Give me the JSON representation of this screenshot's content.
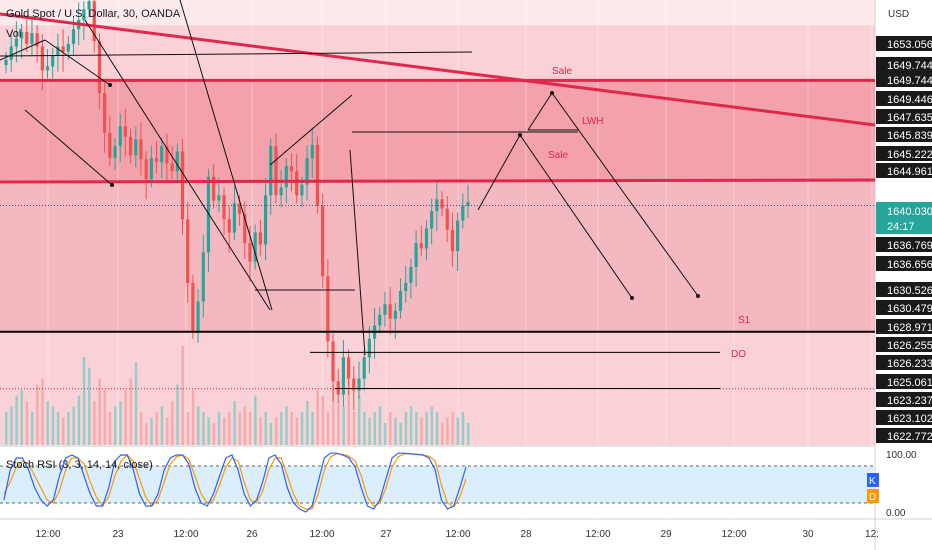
{
  "header": {
    "symbol_title": "Gold Spot / U.S. Dollar, 30, OANDA",
    "volume_label": "Vol",
    "currency": "USD"
  },
  "colors": {
    "zone_light": "#fad1d6",
    "zone_mid": "#f6b8c0",
    "zone_dark": "#f3a2ac",
    "accent_line": "#e0284a",
    "candle_up": "#26a69a",
    "candle_down": "#ef5350",
    "price_tag": "#26a69a",
    "stoch_k": "#2962ff",
    "stoch_d": "#ff9800",
    "rsi_band": "#dbeefd"
  },
  "stoch_panel": {
    "label": "Stoch RSI (3, 3, 14, 14, close)",
    "k_badge": "K",
    "d_badge": "D",
    "level_top": "100.00",
    "level_bottom": "0.00"
  },
  "annotations": {
    "sale_upper": "Sale",
    "sale_lower": "Sale",
    "lwh": "LWH",
    "s1": "S1",
    "do": "DO"
  },
  "chart_data": {
    "type": "candlestick",
    "symbol": "XAUUSD",
    "timeframe": "30",
    "price_axis_labels": [
      "1653.056",
      "1649.744",
      "1649.744",
      "1649.446",
      "1647.635",
      "1645.839",
      "1645.222",
      "1644.961",
      "1640.030",
      "1636.769",
      "1636.656",
      "1630.526",
      "1630.479",
      "1628.971",
      "1626.255",
      "1626.233",
      "1625.061",
      "1623.237",
      "1623.102",
      "1622.772"
    ],
    "current_price": "1640.030",
    "countdown": "24:17",
    "time_axis_labels": [
      "12:00",
      "23",
      "12:00",
      "26",
      "12:00",
      "27",
      "12:00",
      "28",
      "12:00",
      "29",
      "12:00",
      "30",
      "12:"
    ],
    "ylim": [
      1622.0,
      1655.5
    ],
    "closes": [
      1651.0,
      1652.0,
      1652.6,
      1653.1,
      1652.2,
      1653.0,
      1652.0,
      1650.2,
      1650.5,
      1651.3,
      1652.0,
      1651.6,
      1652.2,
      1653.3,
      1654.0,
      1654.8,
      1655.4,
      1652.4,
      1648.5,
      1645.5,
      1643.6,
      1644.5,
      1646.0,
      1645.2,
      1643.8,
      1645.0,
      1643.5,
      1642.0,
      1643.6,
      1643.3,
      1644.5,
      1643.2,
      1642.6,
      1644.1,
      1639.0,
      1634.2,
      1630.6,
      1632.8,
      1636.5,
      1642.2,
      1640.4,
      1640.8,
      1639.0,
      1638.0,
      1640.2,
      1639.4,
      1637.2,
      1635.8,
      1638.0,
      1637.1,
      1640.8,
      1644.5,
      1640.8,
      1641.4,
      1643.0,
      1642.6,
      1640.8,
      1641.6,
      1643.6,
      1644.6,
      1640.0,
      1634.7,
      1629.8,
      1626.8,
      1625.8,
      1628.6,
      1627.0,
      1626.1,
      1627.0,
      1628.6,
      1630.0,
      1631.0,
      1631.8,
      1632.6,
      1631.5,
      1632.1,
      1633.6,
      1634.2,
      1635.4,
      1637.2,
      1636.8,
      1638.3,
      1639.6,
      1640.5,
      1639.8,
      1638.2,
      1636.6,
      1638.9,
      1640.0,
      1640.3
    ],
    "volumes": [
      0.3,
      0.35,
      0.45,
      0.5,
      0.4,
      0.3,
      0.55,
      0.6,
      0.4,
      0.35,
      0.3,
      0.25,
      0.3,
      0.35,
      0.45,
      0.8,
      0.7,
      0.4,
      0.6,
      0.5,
      0.3,
      0.35,
      0.4,
      0.5,
      0.6,
      0.75,
      0.3,
      0.2,
      0.25,
      0.3,
      0.35,
      0.25,
      0.4,
      0.55,
      0.9,
      0.3,
      0.5,
      0.35,
      0.3,
      0.25,
      0.2,
      0.3,
      0.25,
      0.3,
      0.4,
      0.3,
      0.35,
      0.3,
      0.45,
      0.25,
      0.3,
      0.2,
      0.25,
      0.3,
      0.35,
      0.3,
      0.25,
      0.3,
      0.4,
      0.3,
      0.5,
      0.45,
      0.3,
      0.55,
      0.4,
      0.35,
      0.6,
      0.3,
      0.45,
      0.3,
      0.25,
      0.3,
      0.35,
      0.2,
      0.3,
      0.25,
      0.2,
      0.3,
      0.35,
      0.3,
      0.25,
      0.3,
      0.35,
      0.3,
      0.2,
      0.25,
      0.3,
      0.25,
      0.3,
      0.2
    ],
    "stoch_k": [
      0.2,
      0.7,
      0.9,
      0.9,
      0.7,
      0.4,
      0.2,
      0.1,
      0.2,
      0.6,
      0.9,
      0.95,
      0.9,
      0.6,
      0.3,
      0.1,
      0.1,
      0.4,
      0.85,
      0.95,
      0.95,
      0.7,
      0.3,
      0.1,
      0.1,
      0.3,
      0.7,
      0.9,
      0.95,
      0.95,
      0.8,
      0.4,
      0.15,
      0.1,
      0.3,
      0.6,
      0.9,
      0.95,
      0.7,
      0.3,
      0.1,
      0.2,
      0.5,
      0.9,
      0.95,
      0.8,
      0.4,
      0.15,
      0.05,
      0.0,
      0.1,
      0.5,
      0.9,
      0.98,
      0.98,
      0.95,
      0.9,
      0.75,
      0.4,
      0.1,
      0.05,
      0.2,
      0.55,
      0.9,
      0.98,
      0.98,
      0.97,
      0.96,
      0.95,
      0.9,
      0.7,
      0.2,
      0.05,
      0.1,
      0.4,
      0.75
    ],
    "stoch_d": [
      0.3,
      0.5,
      0.75,
      0.85,
      0.8,
      0.6,
      0.4,
      0.2,
      0.15,
      0.35,
      0.7,
      0.9,
      0.9,
      0.8,
      0.5,
      0.25,
      0.1,
      0.25,
      0.6,
      0.85,
      0.95,
      0.85,
      0.55,
      0.25,
      0.1,
      0.2,
      0.5,
      0.8,
      0.92,
      0.95,
      0.88,
      0.6,
      0.3,
      0.15,
      0.2,
      0.45,
      0.75,
      0.9,
      0.85,
      0.5,
      0.2,
      0.15,
      0.35,
      0.7,
      0.9,
      0.9,
      0.6,
      0.3,
      0.1,
      0.05,
      0.05,
      0.3,
      0.7,
      0.92,
      0.97,
      0.96,
      0.93,
      0.85,
      0.6,
      0.25,
      0.1,
      0.15,
      0.4,
      0.75,
      0.92,
      0.97,
      0.97,
      0.96,
      0.95,
      0.93,
      0.85,
      0.45,
      0.15,
      0.08,
      0.25,
      0.55
    ],
    "levels": {
      "upper_sale_line": 1649.446,
      "mid_line": 1641.8,
      "support_line": 1630.526,
      "dotted_current": 1640.03,
      "dotted_low": 1626.233,
      "s1_line": 1628.971,
      "do_line": 1626.255
    },
    "grid": true
  }
}
